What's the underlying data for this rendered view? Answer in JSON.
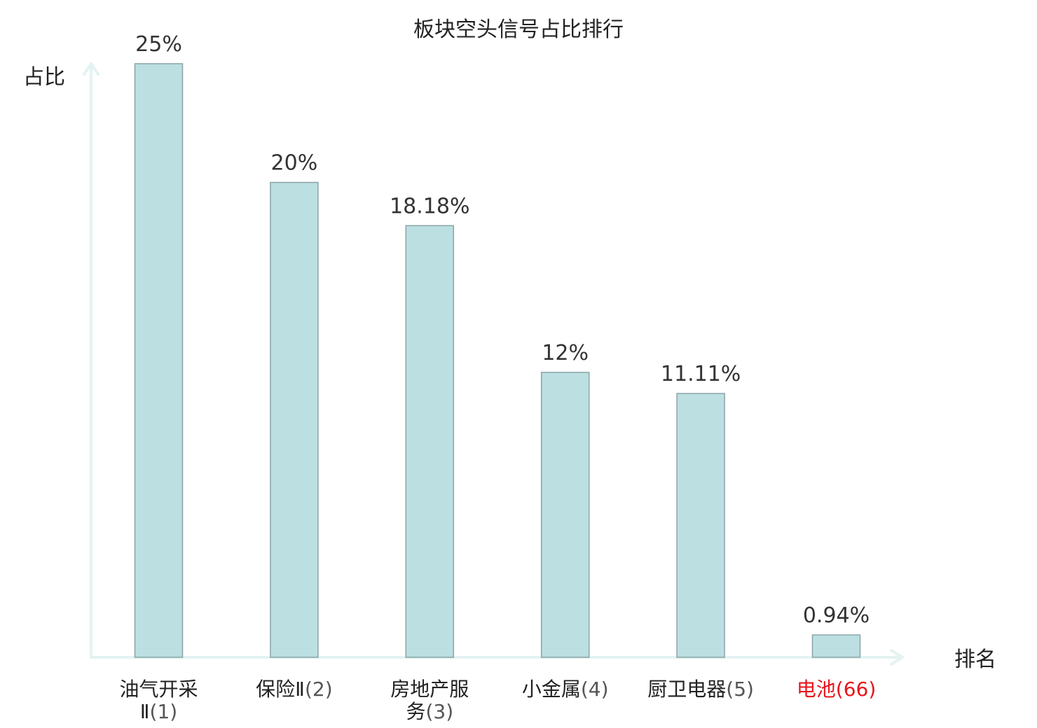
{
  "chart_data": {
    "type": "bar",
    "title": "板块空头信号占比排行",
    "xlabel": "排名",
    "ylabel": "占比",
    "ylim": [
      0,
      25
    ],
    "grid": false,
    "categories": [
      {
        "lines": [
          "油气开采",
          "Ⅱ(1)"
        ]
      },
      {
        "lines": [
          "保险Ⅱ(2)"
        ]
      },
      {
        "lines": [
          "房地产服",
          "务(3)"
        ]
      },
      {
        "lines": [
          "小金属(4)"
        ]
      },
      {
        "lines": [
          "厨卫电器(5)"
        ]
      },
      {
        "lines": [
          "电池(66)"
        ],
        "highlight": true
      }
    ],
    "values": [
      25,
      20,
      18.18,
      12,
      11.11,
      0.94
    ],
    "value_labels": [
      "25%",
      "20%",
      "18.18%",
      "12%",
      "11.11%",
      "0.94%"
    ],
    "colors": {
      "bar_fill": "#bcdfe1",
      "bar_stroke": "#8aa4a8",
      "axis": "#e3f3f1",
      "highlight_text": "#e8141a"
    }
  }
}
